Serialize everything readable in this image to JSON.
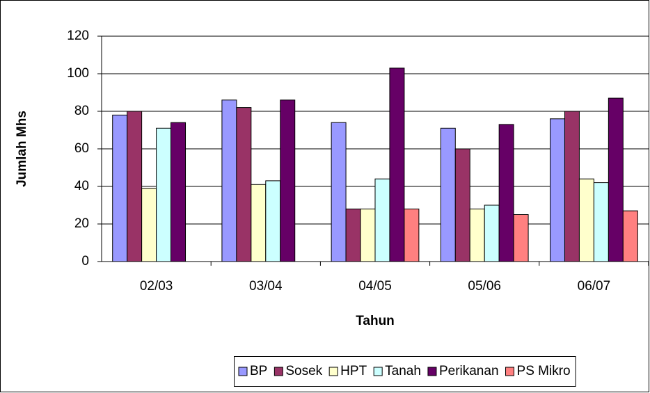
{
  "chart_data": {
    "type": "bar",
    "x_label": "Tahun",
    "y_label": "Jumlah Mhs",
    "categories": [
      "02/03",
      "03/04",
      "04/05",
      "05/06",
      "06/07"
    ],
    "series": [
      {
        "name": "BP",
        "color": "#9999ff",
        "values": [
          78,
          86,
          74,
          71,
          76
        ]
      },
      {
        "name": "Sosek",
        "color": "#993366",
        "values": [
          80,
          82,
          28,
          60,
          80
        ]
      },
      {
        "name": "HPT",
        "color": "#ffffcc",
        "values": [
          39,
          41,
          28,
          28,
          44
        ]
      },
      {
        "name": "Tanah",
        "color": "#ccffff",
        "values": [
          71,
          43,
          44,
          30,
          42
        ]
      },
      {
        "name": "Perikanan",
        "color": "#660066",
        "values": [
          74,
          86,
          103,
          73,
          87
        ]
      },
      {
        "name": "PS Mikro",
        "color": "#ff8080",
        "values": [
          null,
          null,
          28,
          25,
          27
        ]
      }
    ],
    "ylim": [
      0,
      120
    ],
    "yticks": [
      0,
      20,
      40,
      60,
      80,
      100,
      120
    ],
    "grid": true,
    "legend": "bottom"
  }
}
